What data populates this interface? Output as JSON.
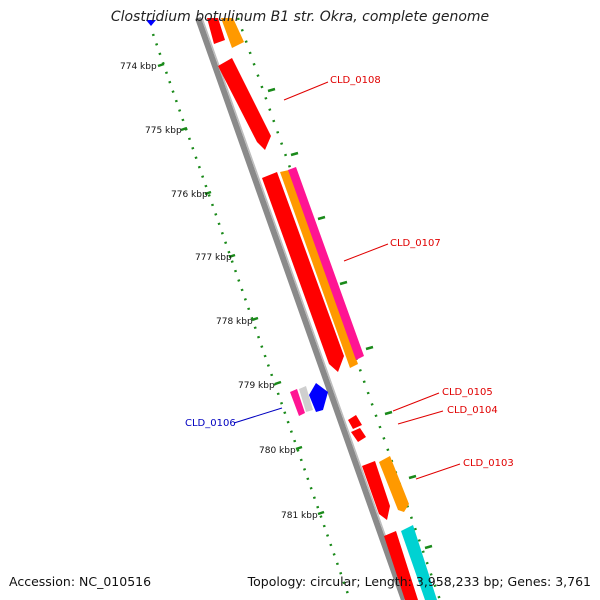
{
  "title": "Clostridium botulinum B1 str. Okra, complete genome",
  "footer": {
    "accession": "Accession: NC_010516",
    "topology": "Topology: circular; Length: 3,958,233 bp; Genes: 3,761"
  },
  "ticks": [
    "774 kbp",
    "775 kbp",
    "776 kbp",
    "777 kbp",
    "778 kbp",
    "779 kbp",
    "780 kbp",
    "781 kbp"
  ],
  "genes": [
    {
      "id": "CLD_0108",
      "color": "#e00000"
    },
    {
      "id": "CLD_0107",
      "color": "#e00000"
    },
    {
      "id": "CLD_0105",
      "color": "#e00000"
    },
    {
      "id": "CLD_0104",
      "color": "#e00000"
    },
    {
      "id": "CLD_0103",
      "color": "#e00000"
    },
    {
      "id": "CLD_0106",
      "color": "#0000c0"
    }
  ],
  "colors": {
    "backbone": "#8a8a8a",
    "ruler": "#1a8a1a",
    "gene_red": "#ff0000",
    "gene_orange": "#ff9900",
    "gene_magenta": "#ff1493",
    "gene_blue": "#0000ff",
    "gene_cyan": "#00d2d2",
    "gene_grey": "#cfcfcf"
  }
}
